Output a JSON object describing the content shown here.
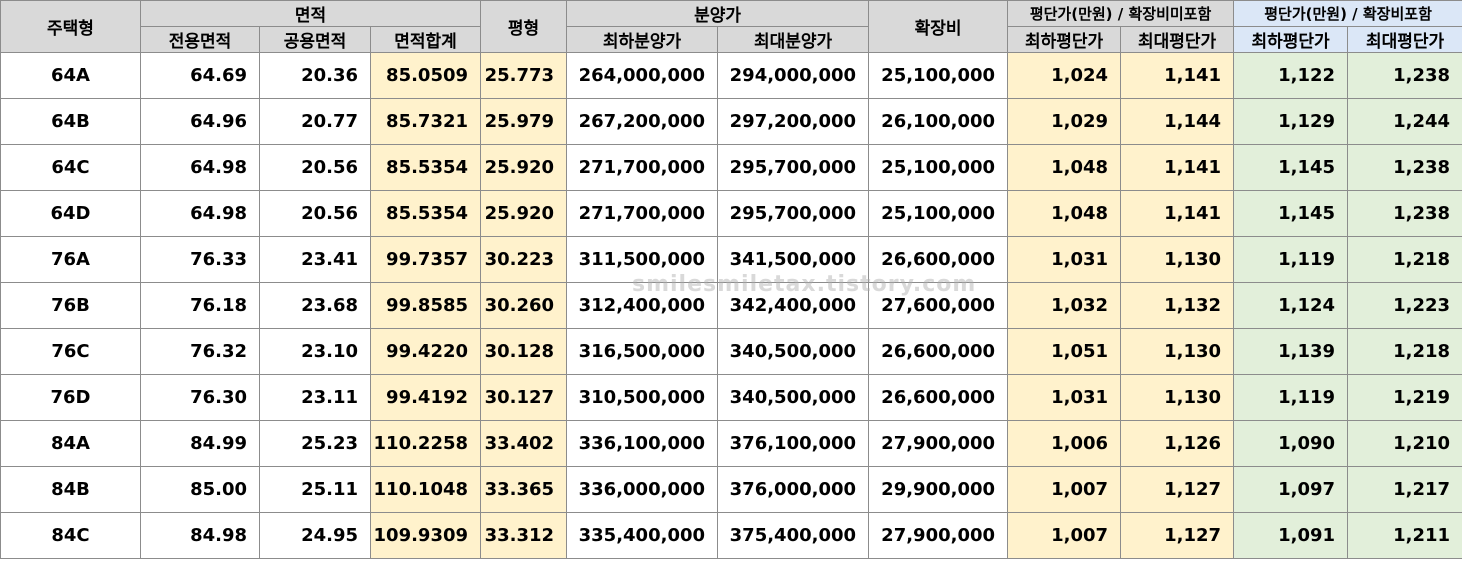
{
  "header": {
    "group_area": "면적",
    "group_price": "분양가",
    "group_unit_excl": "평단가(만원) / 확장비미포함",
    "group_unit_incl": "평단가(만원) / 확장비포함",
    "col_type": "주택형",
    "col_exclusive": "전용면적",
    "col_common": "공용면적",
    "col_total": "면적합계",
    "col_pyeong": "평형",
    "col_price_min": "최하분양가",
    "col_price_max": "최대분양가",
    "col_ext": "확장비",
    "col_unit_min_excl": "최하평단가",
    "col_unit_max_excl": "최대평단가",
    "col_unit_min_incl": "최하평단가",
    "col_unit_max_incl": "최대평단가"
  },
  "rows": [
    [
      "64A",
      "64.69",
      "20.36",
      "85.0509",
      "25.773",
      "264,000,000",
      "294,000,000",
      "25,100,000",
      "1,024",
      "1,141",
      "1,122",
      "1,238"
    ],
    [
      "64B",
      "64.96",
      "20.77",
      "85.7321",
      "25.979",
      "267,200,000",
      "297,200,000",
      "26,100,000",
      "1,029",
      "1,144",
      "1,129",
      "1,244"
    ],
    [
      "64C",
      "64.98",
      "20.56",
      "85.5354",
      "25.920",
      "271,700,000",
      "295,700,000",
      "25,100,000",
      "1,048",
      "1,141",
      "1,145",
      "1,238"
    ],
    [
      "64D",
      "64.98",
      "20.56",
      "85.5354",
      "25.920",
      "271,700,000",
      "295,700,000",
      "25,100,000",
      "1,048",
      "1,141",
      "1,145",
      "1,238"
    ],
    [
      "76A",
      "76.33",
      "23.41",
      "99.7357",
      "30.223",
      "311,500,000",
      "341,500,000",
      "26,600,000",
      "1,031",
      "1,130",
      "1,119",
      "1,218"
    ],
    [
      "76B",
      "76.18",
      "23.68",
      "99.8585",
      "30.260",
      "312,400,000",
      "342,400,000",
      "27,600,000",
      "1,032",
      "1,132",
      "1,124",
      "1,223"
    ],
    [
      "76C",
      "76.32",
      "23.10",
      "99.4220",
      "30.128",
      "316,500,000",
      "340,500,000",
      "26,600,000",
      "1,051",
      "1,130",
      "1,139",
      "1,218"
    ],
    [
      "76D",
      "76.30",
      "23.11",
      "99.4192",
      "30.127",
      "310,500,000",
      "340,500,000",
      "26,600,000",
      "1,031",
      "1,130",
      "1,119",
      "1,219"
    ],
    [
      "84A",
      "84.99",
      "25.23",
      "110.2258",
      "33.402",
      "336,100,000",
      "376,100,000",
      "27,900,000",
      "1,006",
      "1,126",
      "1,090",
      "1,210"
    ],
    [
      "84B",
      "85.00",
      "25.11",
      "110.1048",
      "33.365",
      "336,000,000",
      "376,000,000",
      "29,900,000",
      "1,007",
      "1,127",
      "1,097",
      "1,217"
    ],
    [
      "84C",
      "84.98",
      "24.95",
      "109.9309",
      "33.312",
      "335,400,000",
      "375,400,000",
      "27,900,000",
      "1,007",
      "1,127",
      "1,091",
      "1,211"
    ]
  ],
  "watermark": "smilesmiletax.tistory.com",
  "colors": {
    "header_bg": "#d9d9d9",
    "header_blue": "#dbe7f7",
    "yellow_cell": "#fff2cc",
    "green_cell": "#e2efda",
    "border": "#8c8c8c"
  }
}
